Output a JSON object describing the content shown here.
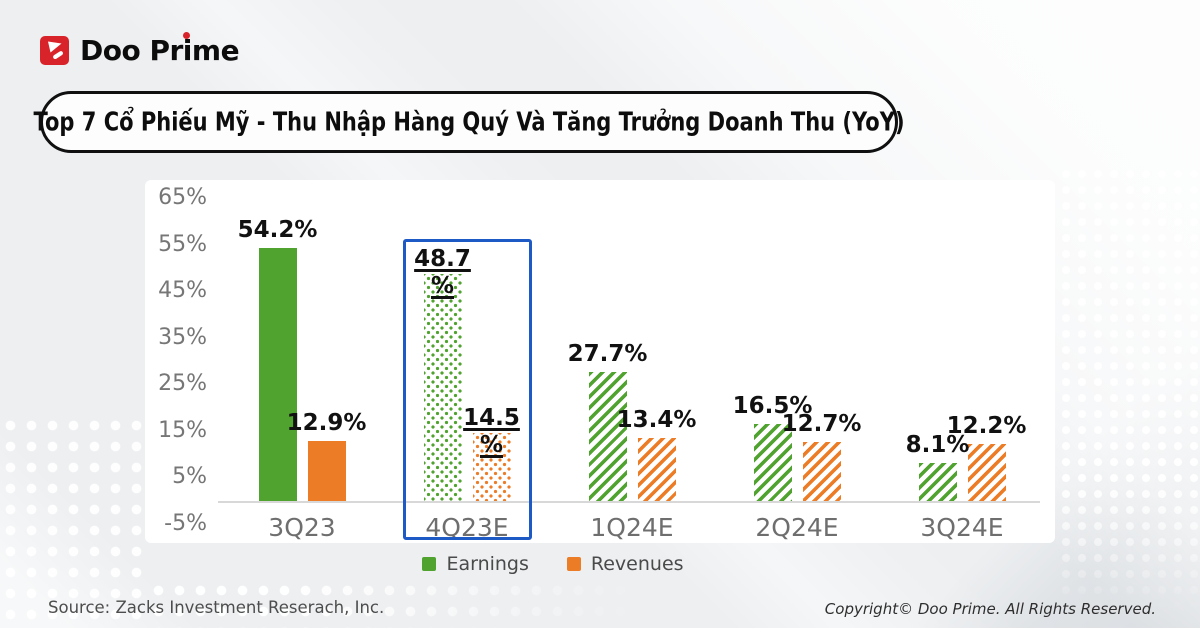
{
  "brand": {
    "name": "Doo Prime"
  },
  "title": "Top 7 Cổ Phiếu Mỹ - Thu Nhập Hàng Quý Và Tăng Trưởng Doanh Thu (YoY)",
  "chart_data": {
    "type": "bar",
    "categories": [
      "3Q23",
      "4Q23E",
      "1Q24E",
      "2Q24E",
      "3Q24E"
    ],
    "series": [
      {
        "name": "Earnings",
        "color": "#4fa32e",
        "values": [
          54.2,
          48.7,
          27.7,
          16.5,
          8.1
        ],
        "labels": [
          "54.2%",
          "48.7%",
          "27.7%",
          "16.5%",
          "8.1%"
        ]
      },
      {
        "name": "Revenues",
        "color": "#ec7c26",
        "values": [
          12.9,
          14.5,
          13.4,
          12.7,
          12.2
        ],
        "labels": [
          "12.9%",
          "14.5%",
          "13.4%",
          "12.7%",
          "12.2%"
        ]
      }
    ],
    "patterns_by_category": [
      "solid",
      "dots",
      "hatch",
      "hatch",
      "hatch"
    ],
    "highlighted_category": "4Q23E",
    "highlight_color": "#1d5ac6",
    "y_ticks": [
      "65%",
      "55%",
      "45%",
      "35%",
      "25%",
      "15%",
      "5%",
      "-5%"
    ],
    "ylim": [
      -5,
      65
    ],
    "grid": "off",
    "legend": [
      "Earnings",
      "Revenues"
    ],
    "legend_position": "bottom"
  },
  "footer": {
    "source": "Source: Zacks Investment Reserach, Inc.",
    "copyright": "Copyright© Doo Prime. All Rights Reserved."
  }
}
